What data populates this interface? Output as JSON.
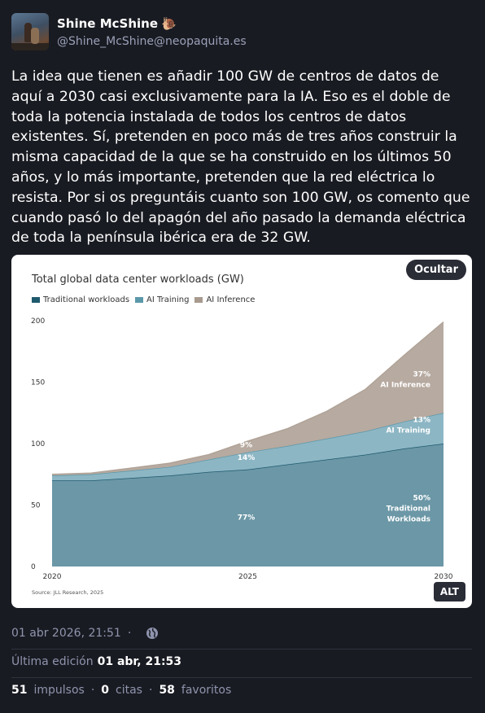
{
  "author": {
    "display_name": "Shine McShine",
    "emoji": "🐌",
    "handle": "@Shine_McShine@neopaquita.es"
  },
  "post": {
    "text": "La idea que tienen es añadir 100 GW de centros de datos de aquí a 2030 casi exclusivamente para la IA. Eso es el doble de toda la potencia instalada de todos los centros de datos existentes. Sí, pretenden en poco más de tres años construir la misma capacidad de la que se ha construido en los últimos 50 años, y lo más importante, pretenden que la red eléctrica lo resista. Por si os preguntáis cuanto son 100 GW, os comento que cuando pasó lo del apagón del año pasado la demanda eléctrica de toda la península ibérica era de 32 GW."
  },
  "media": {
    "hide_label": "Ocultar",
    "alt_label": "ALT"
  },
  "chart_data": {
    "type": "area",
    "stacked": true,
    "title": "Total global data center workloads (GW)",
    "source": "Source: JLL Research, 2025",
    "x": [
      2020,
      2021,
      2022,
      2023,
      2024,
      2025,
      2026,
      2027,
      2028,
      2029,
      2030
    ],
    "x_ticks": [
      "2020",
      "2025",
      "2030"
    ],
    "y_ticks": [
      "0",
      "50",
      "100",
      "150",
      "200"
    ],
    "ylim": [
      0,
      200
    ],
    "legend_position": "top-left",
    "series": [
      {
        "name": "Traditional workloads",
        "color": "#6b97a6",
        "line_color": "#1e5a6e",
        "values": [
          70,
          70,
          72,
          74,
          77,
          79,
          83,
          87,
          91,
          96,
          100
        ]
      },
      {
        "name": "AI Training",
        "color": "#8db6c4",
        "line_color": "#5b98aa",
        "values": [
          4,
          5,
          6,
          7,
          10,
          14,
          15,
          17,
          19,
          22,
          25
        ]
      },
      {
        "name": "AI Inference",
        "color": "#b7aaa0",
        "line_color": "#b0a398",
        "values": [
          1,
          1,
          2,
          3,
          4,
          9,
          14,
          22,
          34,
          54,
          74
        ]
      }
    ],
    "annotations": {
      "y2025": {
        "traditional": "77%",
        "training": "14%",
        "inference": "9%"
      },
      "y2030": {
        "traditional": "50%",
        "traditional_l1": "Traditional",
        "traditional_l2": "Workloads",
        "training": "13%",
        "training_label": "AI Training",
        "inference": "37%",
        "inference_label": "AI Inference"
      }
    }
  },
  "footer": {
    "timestamp": "01 abr 2026, 21:51",
    "edited_label": "Última edición",
    "edited_time": "01 abr, 21:53",
    "boosts_count": "51",
    "boosts_label": "impulsos",
    "quotes_count": "0",
    "quotes_label": "citas",
    "favs_count": "58",
    "favs_label": "favoritos",
    "separator": "·"
  }
}
